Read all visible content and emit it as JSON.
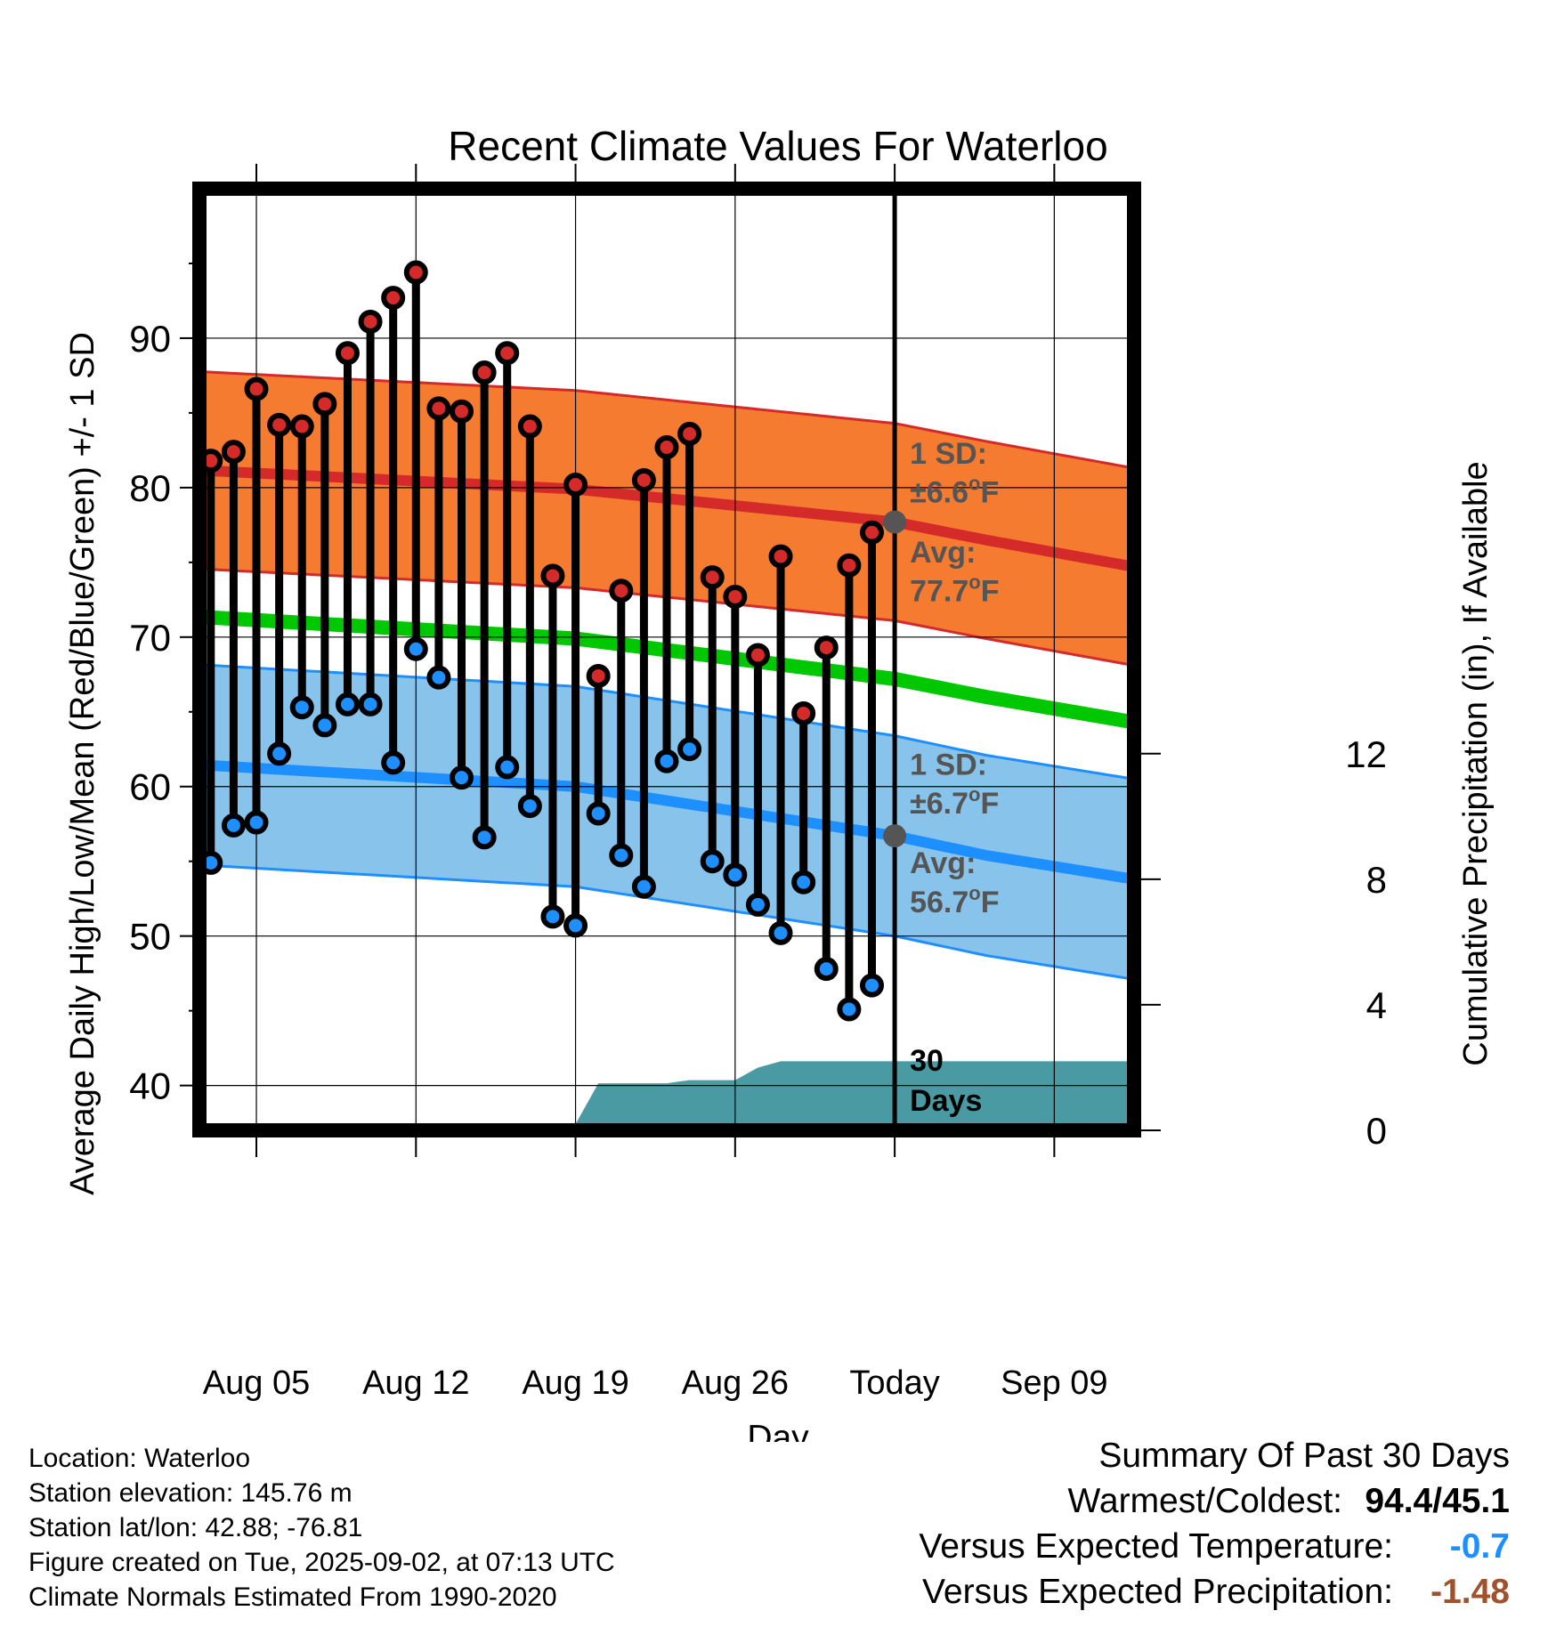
{
  "chart_data": {
    "type": "line",
    "title": "Recent Climate Values For Waterloo",
    "xlabel": "Day",
    "ylabel": "Average Daily High/Low/Mean (Red/Blue/Green) +/- 1 SD",
    "y2label": "Cumulative Precipitation (in), If Available",
    "ylim": [
      37,
      100
    ],
    "y2lim": [
      0,
      30
    ],
    "yticks": [
      40,
      50,
      60,
      70,
      80,
      90
    ],
    "y2ticks": [
      0,
      4,
      8,
      12
    ],
    "xlim_days": [
      -30.5,
      10.5
    ],
    "xticks": [
      {
        "day": -28,
        "label": "Aug 05"
      },
      {
        "day": -21,
        "label": "Aug 12"
      },
      {
        "day": -14,
        "label": "Aug 19"
      },
      {
        "day": -7,
        "label": "Aug 26"
      },
      {
        "day": 0,
        "label": "Today"
      },
      {
        "day": 7,
        "label": "Sep 09"
      }
    ],
    "days": [
      -30,
      -29,
      -28,
      -27,
      -26,
      -25,
      -24,
      -23,
      -22,
      -21,
      -20,
      -19,
      -18,
      -17,
      -16,
      -15,
      -14,
      -13,
      -12,
      -11,
      -10,
      -9,
      -8,
      -7,
      -6,
      -5,
      -4,
      -3,
      -2,
      -1
    ],
    "daily_high": [
      81.8,
      82.4,
      86.6,
      84.2,
      84.1,
      85.6,
      89.0,
      91.1,
      92.7,
      94.4,
      85.3,
      85.1,
      87.7,
      89.0,
      84.1,
      74.1,
      80.2,
      67.4,
      73.1,
      80.5,
      82.7,
      83.6,
      74.0,
      72.7,
      68.8,
      75.4,
      64.9,
      69.3,
      74.8,
      77.0
    ],
    "daily_low": [
      54.9,
      57.4,
      57.6,
      62.2,
      65.3,
      64.1,
      65.5,
      65.5,
      61.6,
      69.2,
      67.3,
      60.6,
      56.6,
      61.3,
      58.7,
      51.3,
      50.7,
      58.2,
      55.4,
      53.3,
      61.7,
      62.5,
      55.0,
      54.1,
      52.1,
      50.2,
      53.6,
      47.8,
      45.1,
      46.7
    ],
    "normal_high": {
      "days": [
        -31,
        -14,
        0,
        4,
        10.5
      ],
      "values": [
        81.2,
        79.9,
        77.7,
        76.5,
        74.7
      ]
    },
    "normal_high_sd": 6.6,
    "normal_low": {
      "days": [
        -31,
        -14,
        0,
        4,
        10.5
      ],
      "values": [
        61.5,
        60.0,
        56.7,
        55.4,
        53.8
      ]
    },
    "normal_low_sd": 6.7,
    "normal_mean": {
      "days": [
        -31,
        -14,
        0,
        4,
        10.5
      ],
      "values": [
        71.4,
        69.9,
        67.2,
        66.0,
        64.3
      ]
    },
    "precip": {
      "days": [
        -16.5,
        -14,
        -13,
        -10,
        -9,
        -8,
        -7,
        -6,
        -5,
        10.5
      ],
      "values": [
        0,
        0.2,
        1.5,
        1.5,
        1.6,
        1.6,
        1.6,
        2.0,
        2.2,
        2.2
      ]
    },
    "annotations": {
      "high_sd": {
        "line1": "1 SD:",
        "line2": "±6.6",
        "unit": "F"
      },
      "high_avg": {
        "line1": "Avg:",
        "line2": "77.7",
        "unit": "F"
      },
      "low_sd": {
        "line1": "1 SD:",
        "line2": "±6.7",
        "unit": "F"
      },
      "low_avg": {
        "line1": "Avg:",
        "line2": "56.7",
        "unit": "F"
      },
      "precip_days": {
        "line1": "30",
        "line2": "Days"
      }
    },
    "grid": true,
    "colors": {
      "high": "#d42a2a",
      "high_band": "#f57b30",
      "low": "#1e8fff",
      "low_band": "#87c3ea",
      "mean": "#00c800",
      "precip": "#4a9aa3",
      "annotation": "#555555"
    }
  },
  "info": {
    "location": "Location: Waterloo",
    "elevation": "Station elevation: 145.76 m",
    "latlon": "Station lat/lon: 42.88; -76.81",
    "created": "Figure created on Tue, 2025-09-02, at 07:13 UTC",
    "normals": "Climate Normals Estimated From 1990-2020"
  },
  "summary": {
    "title": "Summary Of Past 30 Days",
    "warmest_label": "Warmest/Coldest:",
    "warmest_value": "94.4/45.1",
    "temp_label": "Versus Expected Temperature:",
    "temp_value": "-0.7",
    "temp_color": "#1e8fff",
    "precip_label": "Versus Expected Precipitation:",
    "precip_value": "-1.48",
    "precip_color": "#a0522d"
  }
}
